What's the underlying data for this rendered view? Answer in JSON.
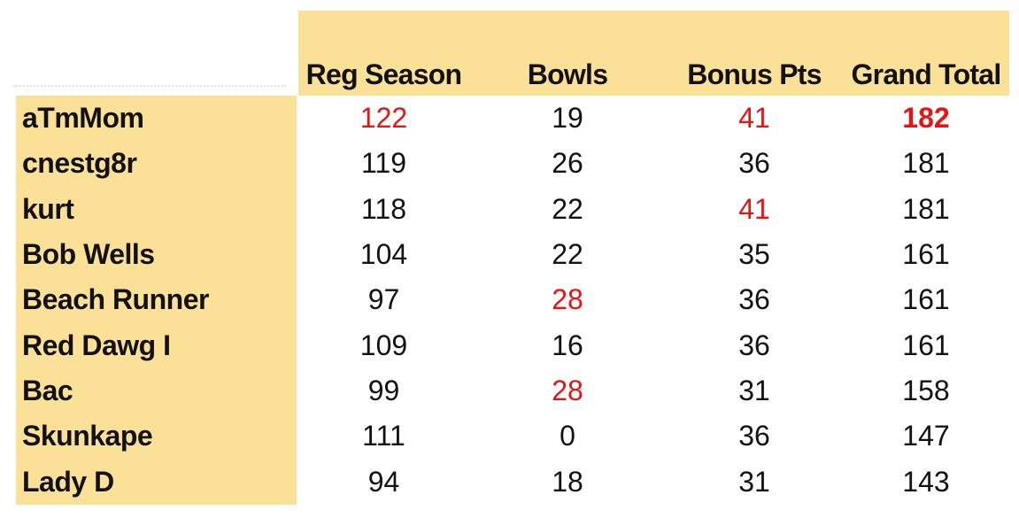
{
  "colors": {
    "highlight_fill": "#fbe197",
    "leader_red": "#e81414",
    "text": "#121212",
    "background": "#ffffff"
  },
  "header": {
    "columns": [
      "Reg Season",
      "Bowls",
      "Bonus Pts",
      "Grand Total"
    ]
  },
  "rows": [
    {
      "name": "aTmMom",
      "cells": [
        {
          "v": "122",
          "red": true
        },
        {
          "v": "19",
          "red": false
        },
        {
          "v": "41",
          "red": true
        },
        {
          "v": "182",
          "red": true,
          "bold": true
        }
      ]
    },
    {
      "name": "cnestg8r",
      "cells": [
        {
          "v": "119",
          "red": false
        },
        {
          "v": "26",
          "red": false
        },
        {
          "v": "36",
          "red": false
        },
        {
          "v": "181",
          "red": false
        }
      ]
    },
    {
      "name": "kurt",
      "cells": [
        {
          "v": "118",
          "red": false
        },
        {
          "v": "22",
          "red": false
        },
        {
          "v": "41",
          "red": true
        },
        {
          "v": "181",
          "red": false
        }
      ]
    },
    {
      "name": "Bob Wells",
      "cells": [
        {
          "v": "104",
          "red": false
        },
        {
          "v": "22",
          "red": false
        },
        {
          "v": "35",
          "red": false
        },
        {
          "v": "161",
          "red": false
        }
      ]
    },
    {
      "name": "Beach Runner",
      "cells": [
        {
          "v": "97",
          "red": false
        },
        {
          "v": "28",
          "red": true
        },
        {
          "v": "36",
          "red": false
        },
        {
          "v": "161",
          "red": false
        }
      ]
    },
    {
      "name": "Red Dawg I",
      "cells": [
        {
          "v": "109",
          "red": false
        },
        {
          "v": "16",
          "red": false
        },
        {
          "v": "36",
          "red": false
        },
        {
          "v": "161",
          "red": false
        }
      ]
    },
    {
      "name": "Bac",
      "cells": [
        {
          "v": "99",
          "red": false
        },
        {
          "v": "28",
          "red": true
        },
        {
          "v": "31",
          "red": false
        },
        {
          "v": "158",
          "red": false
        }
      ]
    },
    {
      "name": "Skunkape",
      "cells": [
        {
          "v": "111",
          "red": false
        },
        {
          "v": "0",
          "red": false
        },
        {
          "v": "36",
          "red": false
        },
        {
          "v": "147",
          "red": false
        }
      ]
    },
    {
      "name": "Lady D",
      "cells": [
        {
          "v": "94",
          "red": false
        },
        {
          "v": "18",
          "red": false
        },
        {
          "v": "31",
          "red": false
        },
        {
          "v": "143",
          "red": false
        }
      ]
    }
  ]
}
